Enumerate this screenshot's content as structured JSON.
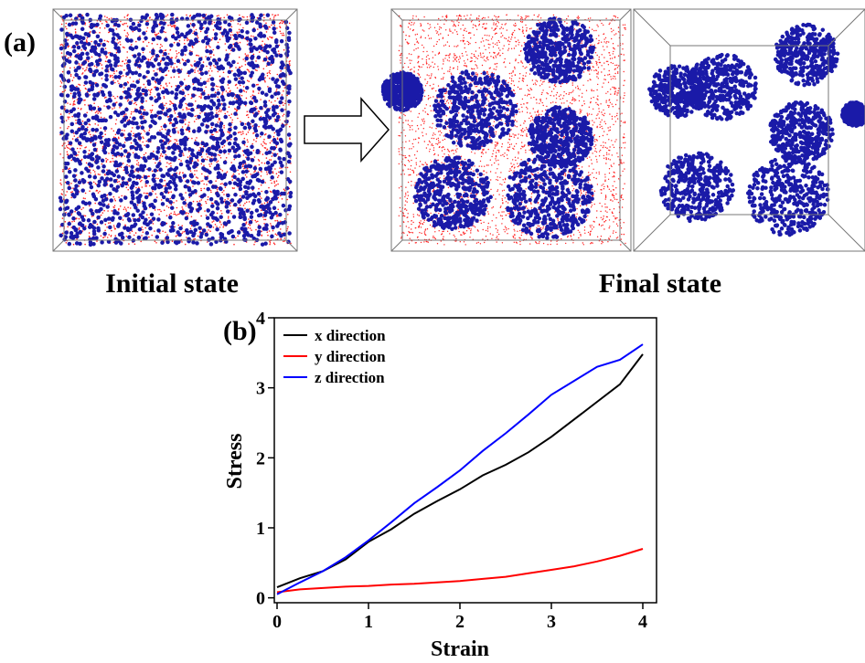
{
  "panel_a": {
    "label": "(a)",
    "initial_caption": "Initial state",
    "final_caption": "Final state"
  },
  "chart_data": {
    "type": "line",
    "panel_label": "(b)",
    "xlabel": "Strain",
    "ylabel": "Stress",
    "x": [
      0,
      0.25,
      0.5,
      0.75,
      1,
      1.25,
      1.5,
      1.75,
      2,
      2.25,
      2.5,
      2.75,
      3,
      3.25,
      3.5,
      3.75,
      4
    ],
    "series": [
      {
        "name": "x direction",
        "color": "#000000",
        "values": [
          0.15,
          0.28,
          0.38,
          0.55,
          0.8,
          0.98,
          1.2,
          1.38,
          1.55,
          1.75,
          1.9,
          2.08,
          2.3,
          2.55,
          2.8,
          3.05,
          3.48
        ]
      },
      {
        "name": "y direction",
        "color": "#ff0000",
        "values": [
          0.08,
          0.12,
          0.14,
          0.16,
          0.17,
          0.19,
          0.2,
          0.22,
          0.24,
          0.27,
          0.3,
          0.35,
          0.4,
          0.45,
          0.52,
          0.6,
          0.7
        ]
      },
      {
        "name": "z direction",
        "color": "#0000ff",
        "values": [
          0.05,
          0.22,
          0.38,
          0.58,
          0.82,
          1.08,
          1.35,
          1.58,
          1.82,
          2.1,
          2.35,
          2.62,
          2.9,
          3.1,
          3.3,
          3.4,
          3.62
        ]
      }
    ],
    "xlim": [
      -0.03,
      4.15
    ],
    "ylim": [
      -0.07,
      4
    ],
    "xticks": [
      0,
      1,
      2,
      3,
      4
    ],
    "yticks": [
      0,
      1,
      2,
      3,
      4
    ]
  }
}
